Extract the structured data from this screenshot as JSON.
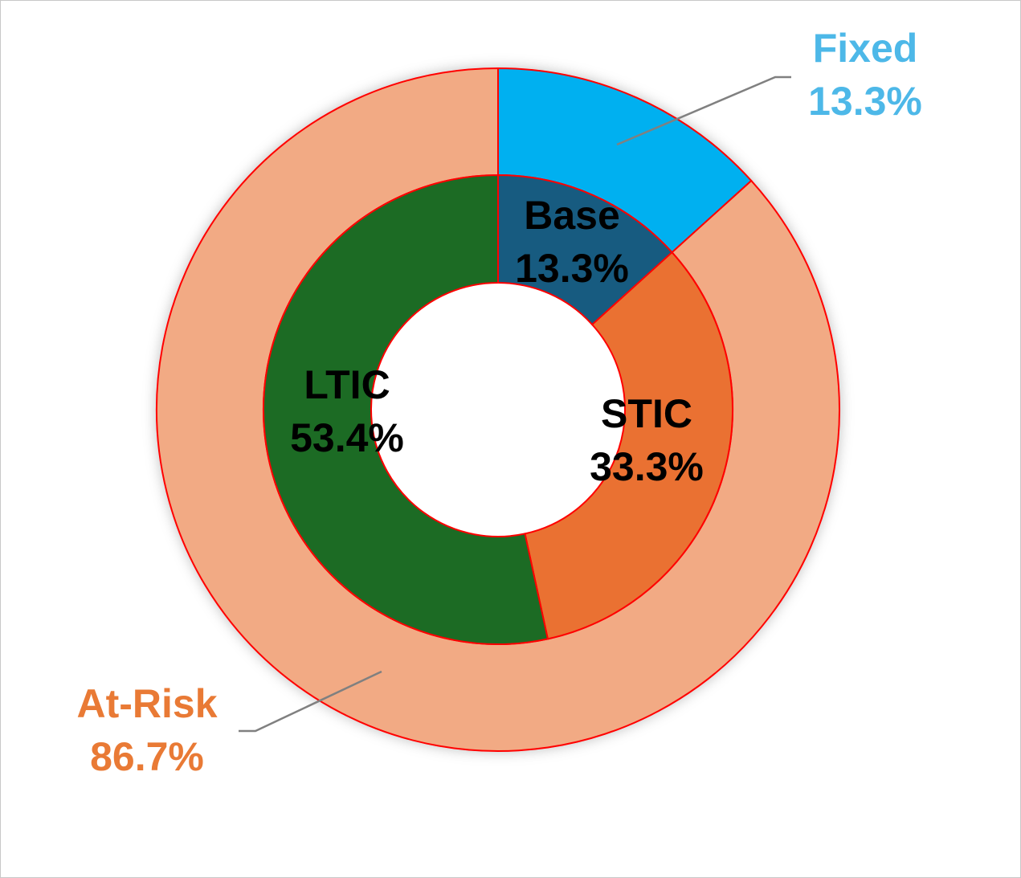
{
  "chart_data": {
    "type": "pie",
    "subtype": "nested-donut",
    "title": "",
    "legend": "none",
    "outer_ring": [
      {
        "label": "Fixed",
        "value": 13.3,
        "display": "13.3%",
        "color": "#00b0f0",
        "label_color": "#4db8e8"
      },
      {
        "label": "At-Risk",
        "value": 86.7,
        "display": "86.7%",
        "color": "#f2aa84",
        "label_color": "#e97a35"
      }
    ],
    "inner_ring": [
      {
        "label": "Base",
        "value": 13.3,
        "display": "13.3%",
        "color": "#175b80",
        "label_color": "#000000"
      },
      {
        "label": "STIC",
        "value": 33.3,
        "display": "33.3%",
        "color": "#ea7132",
        "label_color": "#000000"
      },
      {
        "label": "LTIC",
        "value": 53.4,
        "display": "53.4%",
        "color": "#1c6b24",
        "label_color": "#000000"
      }
    ],
    "border_color": "#ff0000",
    "leader_line_color": "#808080"
  }
}
